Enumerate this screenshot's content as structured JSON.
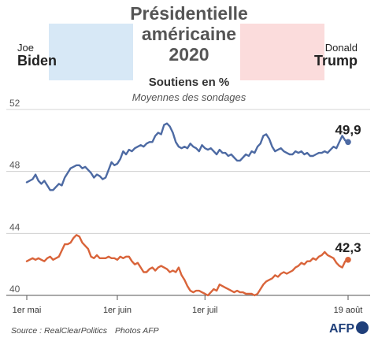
{
  "header": {
    "title_lines": [
      "Présidentielle",
      "américaine",
      "2020"
    ],
    "biden": {
      "first": "Joe",
      "last": "Biden",
      "color": "#4d6aa3"
    },
    "trump": {
      "first": "Donald",
      "last": "Trump",
      "color": "#d9643a"
    },
    "subtitle": "Soutiens en %",
    "subtitle2": "Moyennes des sondages"
  },
  "footer": {
    "source": "Source : RealClearPolitics",
    "photos": "Photos AFP",
    "logo": "AFP"
  },
  "chart_data": {
    "type": "line",
    "ylim": [
      40,
      52
    ],
    "yticks": [
      40,
      44,
      48,
      52
    ],
    "xticks": [
      {
        "day": 0,
        "label": "1er mai"
      },
      {
        "day": 31,
        "label": "1er juin"
      },
      {
        "day": 61,
        "label": "1er juil"
      },
      {
        "day": 110,
        "label": "19 août"
      }
    ],
    "x_domain": [
      0,
      110
    ],
    "series": [
      {
        "name": "Biden",
        "color": "#4d6aa3",
        "end_label": "49,9",
        "x": [
          0,
          2,
          3,
          4,
          5,
          6,
          7,
          8,
          9,
          10,
          11,
          12,
          13,
          14,
          15,
          16,
          17,
          18,
          19,
          20,
          21,
          22,
          23,
          24,
          25,
          26,
          27,
          28,
          29,
          30,
          31,
          32,
          33,
          34,
          35,
          36,
          37,
          38,
          39,
          40,
          41,
          42,
          43,
          44,
          45,
          46,
          47,
          48,
          49,
          50,
          51,
          52,
          53,
          54,
          55,
          56,
          57,
          58,
          59,
          60,
          61,
          62,
          63,
          64,
          65,
          66,
          67,
          68,
          69,
          70,
          71,
          72,
          73,
          74,
          75,
          76,
          77,
          78,
          79,
          80,
          81,
          82,
          83,
          84,
          85,
          86,
          87,
          88,
          89,
          90,
          91,
          92,
          93,
          94,
          95,
          96,
          97,
          98,
          99,
          100,
          101,
          102,
          103,
          104,
          105,
          106,
          107,
          108,
          109,
          110
        ],
        "values": [
          47.3,
          47.5,
          47.8,
          47.4,
          47.2,
          47.4,
          47.1,
          46.8,
          46.8,
          47.0,
          47.2,
          47.1,
          47.6,
          47.9,
          48.2,
          48.3,
          48.4,
          48.4,
          48.2,
          48.3,
          48.1,
          47.9,
          47.6,
          47.8,
          47.7,
          47.5,
          47.6,
          48.1,
          48.6,
          48.4,
          48.5,
          48.8,
          49.3,
          49.1,
          49.4,
          49.3,
          49.5,
          49.6,
          49.7,
          49.6,
          49.8,
          49.9,
          49.9,
          50.3,
          50.5,
          50.4,
          51.0,
          51.1,
          50.9,
          50.5,
          49.9,
          49.6,
          49.5,
          49.6,
          49.5,
          49.8,
          49.6,
          49.5,
          49.3,
          49.7,
          49.5,
          49.4,
          49.5,
          49.3,
          49.1,
          49.4,
          49.2,
          49.2,
          49.0,
          49.1,
          48.9,
          48.7,
          48.7,
          48.9,
          49.1,
          49.0,
          49.3,
          49.2,
          49.6,
          49.8,
          50.3,
          50.4,
          50.1,
          49.6,
          49.3,
          49.4,
          49.5,
          49.3,
          49.2,
          49.1,
          49.1,
          49.3,
          49.2,
          49.3,
          49.1,
          49.2,
          49.0,
          49.0,
          49.1,
          49.2,
          49.2,
          49.3,
          49.2,
          49.4,
          49.6,
          49.5,
          49.9,
          50.3,
          50.0,
          49.9
        ]
      },
      {
        "name": "Trump",
        "color": "#d9643a",
        "end_label": "42,3",
        "x": [
          0,
          2,
          3,
          4,
          5,
          6,
          7,
          8,
          9,
          10,
          11,
          12,
          13,
          14,
          15,
          16,
          17,
          18,
          19,
          20,
          21,
          22,
          23,
          24,
          25,
          26,
          27,
          28,
          29,
          30,
          31,
          32,
          33,
          34,
          35,
          36,
          37,
          38,
          39,
          40,
          41,
          42,
          43,
          44,
          45,
          46,
          47,
          48,
          49,
          50,
          51,
          52,
          53,
          54,
          55,
          56,
          57,
          58,
          59,
          60,
          61,
          62,
          63,
          64,
          65,
          66,
          67,
          68,
          69,
          70,
          71,
          72,
          73,
          74,
          75,
          76,
          77,
          78,
          79,
          80,
          81,
          82,
          83,
          84,
          85,
          86,
          87,
          88,
          89,
          90,
          91,
          92,
          93,
          94,
          95,
          96,
          97,
          98,
          99,
          100,
          101,
          102,
          103,
          104,
          105,
          106,
          107,
          108,
          109,
          110
        ],
        "values": [
          42.2,
          42.4,
          42.3,
          42.4,
          42.3,
          42.2,
          42.4,
          42.5,
          42.3,
          42.4,
          42.5,
          42.9,
          43.3,
          43.3,
          43.4,
          43.7,
          43.9,
          43.8,
          43.4,
          43.2,
          43.0,
          42.5,
          42.4,
          42.6,
          42.4,
          42.4,
          42.4,
          42.5,
          42.4,
          42.4,
          42.3,
          42.5,
          42.4,
          42.5,
          42.5,
          42.2,
          42.0,
          42.1,
          41.8,
          41.5,
          41.5,
          41.7,
          41.8,
          41.6,
          41.8,
          41.9,
          41.8,
          41.7,
          41.5,
          41.6,
          41.5,
          41.8,
          41.3,
          41.0,
          40.6,
          40.3,
          40.2,
          40.3,
          40.3,
          40.2,
          40.1,
          40.0,
          40.2,
          40.4,
          40.3,
          40.7,
          40.6,
          40.5,
          40.4,
          40.3,
          40.2,
          40.3,
          40.2,
          40.2,
          40.1,
          40.1,
          40.1,
          40.0,
          40.1,
          40.4,
          40.7,
          40.9,
          41.0,
          41.1,
          41.3,
          41.2,
          41.4,
          41.5,
          41.4,
          41.5,
          41.6,
          41.8,
          41.9,
          42.1,
          42.0,
          42.2,
          42.2,
          42.4,
          42.3,
          42.5,
          42.6,
          42.8,
          42.6,
          42.5,
          42.4,
          42.1,
          41.9,
          41.8,
          42.2,
          42.3
        ]
      }
    ]
  }
}
